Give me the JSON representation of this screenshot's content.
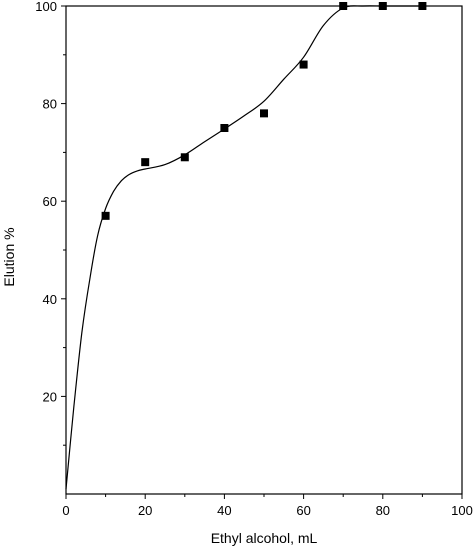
{
  "chart_data": {
    "type": "scatter",
    "title": "",
    "xlabel": "Ethyl alcohol, mL",
    "ylabel": "Elution %",
    "xlim": [
      0,
      100
    ],
    "ylim": [
      0,
      100
    ],
    "xticks": [
      0,
      20,
      40,
      60,
      80,
      100
    ],
    "yticks": [
      20,
      40,
      60,
      80,
      100
    ],
    "x_tick_labels": [
      "0",
      "20",
      "40",
      "60",
      "80",
      "100"
    ],
    "y_tick_labels": [
      "20",
      "40",
      "60",
      "80",
      "100"
    ],
    "grid": false,
    "legend": "none",
    "series": [
      {
        "marker": "square",
        "x": [
          10,
          20,
          30,
          40,
          50,
          60,
          70,
          80,
          90
        ],
        "y": [
          57,
          68,
          69,
          75,
          78,
          88,
          100,
          100,
          100
        ]
      }
    ],
    "fit_curve": {
      "x": [
        0,
        2,
        4,
        6,
        8,
        10,
        12,
        14,
        16,
        18,
        20,
        25,
        30,
        35,
        40,
        45,
        50,
        55,
        60,
        65,
        70,
        75,
        80,
        85,
        90
      ],
      "y": [
        1,
        18,
        33,
        44,
        53,
        58.5,
        62,
        64.2,
        65.5,
        66.2,
        66.6,
        67.5,
        69.5,
        72.2,
        74.8,
        77.5,
        80.5,
        85,
        89.5,
        96,
        99.6,
        100,
        100,
        100,
        100
      ]
    },
    "colors": {
      "marker": "#000000",
      "line": "#000000",
      "axis": "#000000",
      "background": "#ffffff"
    }
  }
}
